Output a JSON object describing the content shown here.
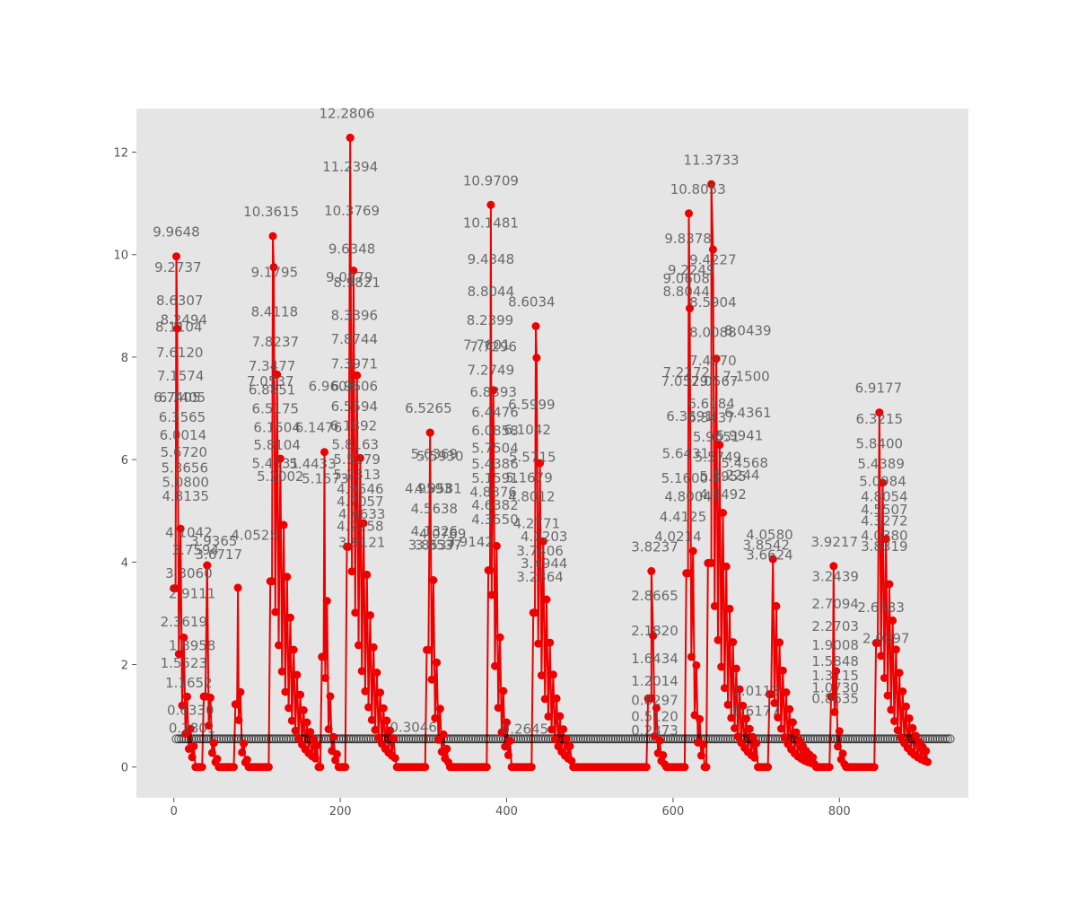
{
  "chart_data": {
    "type": "line",
    "title": "",
    "xlabel": "",
    "ylabel": "",
    "xlim": [
      -45,
      955
    ],
    "ylim": [
      -0.6,
      12.85
    ],
    "x_ticks": [
      0,
      200,
      400,
      600,
      800
    ],
    "y_ticks": [
      0,
      2,
      4,
      6,
      8,
      10,
      12
    ],
    "grid": false,
    "background": "#e5e5e5",
    "colors": {
      "line": "#ee0000",
      "marker": "#ee0000",
      "baseline_marker": "#000000",
      "annotation": "#555555",
      "tick": "#555555"
    },
    "peaks": [
      {
        "x": 3,
        "value": 9.9648,
        "label": "9.9648",
        "end": 24
      },
      {
        "x": 40,
        "value": 3.9365,
        "label": "3.9365",
        "end": 52
      },
      {
        "x": 77,
        "value": 3.5,
        "label": "3.5",
        "end": 88
      },
      {
        "x": 119,
        "value": 10.3615,
        "label": "10.3615",
        "end": 172
      },
      {
        "x": 181,
        "value": 6.1476,
        "label": "6.1476",
        "end": 196
      },
      {
        "x": 212,
        "value": 12.2806,
        "label": "12.2806",
        "end": 266
      },
      {
        "x": 308,
        "value": 6.5265,
        "label": "6.5265",
        "end": 330
      },
      {
        "x": 381,
        "value": 10.9709,
        "label": "10.9709",
        "end": 405
      },
      {
        "x": 435,
        "value": 8.6034,
        "label": "8.6034",
        "end": 478
      },
      {
        "x": 574,
        "value": 3.8237,
        "label": "3.8237",
        "end": 590
      },
      {
        "x": 619,
        "value": 10.8053,
        "label": "10.8053",
        "end": 636
      },
      {
        "x": 646,
        "value": 11.3733,
        "label": "11.3733",
        "end": 700
      },
      {
        "x": 720,
        "value": 4.058,
        "label": "4.0580",
        "end": 770
      },
      {
        "x": 793,
        "value": 3.9217,
        "label": "3.9217",
        "end": 806
      },
      {
        "x": 848,
        "value": 6.9177,
        "label": "6.9177",
        "end": 906
      }
    ],
    "annotations": [
      {
        "x": 3,
        "y": 9.9648,
        "text": "9.9648"
      },
      {
        "x": 5,
        "y": 9.2737,
        "text": "9.2737"
      },
      {
        "x": 7,
        "y": 8.6307,
        "text": "8.6307"
      },
      {
        "x": 6,
        "y": 8.1104,
        "text": "8.1104"
      },
      {
        "x": 12,
        "y": 8.2494,
        "text": "8.2494"
      },
      {
        "x": 7,
        "y": 7.612,
        "text": "7.6120"
      },
      {
        "x": 8,
        "y": 7.1574,
        "text": "7.1574"
      },
      {
        "x": 4,
        "y": 6.7405,
        "text": "6.7405"
      },
      {
        "x": 10,
        "y": 6.7405,
        "text": "6.7405"
      },
      {
        "x": 10,
        "y": 6.3565,
        "text": "6.3565"
      },
      {
        "x": 11,
        "y": 6.0014,
        "text": "6.0014"
      },
      {
        "x": 12,
        "y": 5.672,
        "text": "5.6720"
      },
      {
        "x": 13,
        "y": 5.3656,
        "text": "5.3656"
      },
      {
        "x": 14,
        "y": 5.08,
        "text": "5.0800"
      },
      {
        "x": 14,
        "y": 4.8135,
        "text": "4.8135"
      },
      {
        "x": 18,
        "y": 4.1042,
        "text": "4.1042"
      },
      {
        "x": 26,
        "y": 3.7594,
        "text": "3.7594"
      },
      {
        "x": 54,
        "y": 3.6717,
        "text": "3.6717"
      },
      {
        "x": 48,
        "y": 3.9365,
        "text": "3.9365"
      },
      {
        "x": 18,
        "y": 3.306,
        "text": "3.3060"
      },
      {
        "x": 22,
        "y": 2.9111,
        "text": "2.9111"
      },
      {
        "x": 12,
        "y": 2.3619,
        "text": "2.3619"
      },
      {
        "x": 22,
        "y": 1.8958,
        "text": "1.8958"
      },
      {
        "x": 12,
        "y": 1.5523,
        "text": "1.5523"
      },
      {
        "x": 18,
        "y": 1.1652,
        "text": "1.1652"
      },
      {
        "x": 20,
        "y": 0.633,
        "text": "0.6330"
      },
      {
        "x": 22,
        "y": 0.2801,
        "text": "0.2801"
      },
      {
        "x": 97,
        "y": 4.0525,
        "text": "4.0525"
      },
      {
        "x": 117,
        "y": 10.3615,
        "text": "10.3615"
      },
      {
        "x": 121,
        "y": 9.1795,
        "text": "9.1795"
      },
      {
        "x": 121,
        "y": 8.4118,
        "text": "8.4118"
      },
      {
        "x": 122,
        "y": 7.8237,
        "text": "7.8237"
      },
      {
        "x": 118,
        "y": 7.3477,
        "text": "7.3477"
      },
      {
        "x": 116,
        "y": 7.0537,
        "text": "7.0537"
      },
      {
        "x": 118,
        "y": 6.8851,
        "text": "6.8851"
      },
      {
        "x": 122,
        "y": 6.5175,
        "text": "6.5175"
      },
      {
        "x": 124,
        "y": 6.1504,
        "text": "6.1504"
      },
      {
        "x": 124,
        "y": 5.8104,
        "text": "5.8104"
      },
      {
        "x": 122,
        "y": 5.4531,
        "text": "5.4531"
      },
      {
        "x": 128,
        "y": 5.2002,
        "text": "5.2002"
      },
      {
        "x": 167,
        "y": 5.4433,
        "text": "5.4433"
      },
      {
        "x": 174,
        "y": 6.1476,
        "text": "6.1476"
      },
      {
        "x": 182,
        "y": 5.1573,
        "text": "5.1573"
      },
      {
        "x": 190,
        "y": 6.9606,
        "text": "6.9606"
      },
      {
        "x": 208,
        "y": 12.2806,
        "text": "12.2806"
      },
      {
        "x": 212,
        "y": 11.2394,
        "text": "11.2394"
      },
      {
        "x": 214,
        "y": 10.3769,
        "text": "10.3769"
      },
      {
        "x": 214,
        "y": 9.6348,
        "text": "9.6348"
      },
      {
        "x": 211,
        "y": 9.0879,
        "text": "9.0879"
      },
      {
        "x": 220,
        "y": 8.9821,
        "text": "8.9821"
      },
      {
        "x": 217,
        "y": 8.3396,
        "text": "8.3396"
      },
      {
        "x": 217,
        "y": 7.8744,
        "text": "7.8744"
      },
      {
        "x": 217,
        "y": 7.3971,
        "text": "7.3971"
      },
      {
        "x": 217,
        "y": 6.9606,
        "text": "6.9606"
      },
      {
        "x": 217,
        "y": 6.5594,
        "text": "6.5594"
      },
      {
        "x": 216,
        "y": 6.1892,
        "text": "6.1892"
      },
      {
        "x": 218,
        "y": 5.8163,
        "text": "5.8163"
      },
      {
        "x": 220,
        "y": 5.5279,
        "text": "5.5279"
      },
      {
        "x": 220,
        "y": 5.2313,
        "text": "5.2313"
      },
      {
        "x": 224,
        "y": 4.9546,
        "text": "4.9546"
      },
      {
        "x": 224,
        "y": 4.7057,
        "text": "4.7057"
      },
      {
        "x": 226,
        "y": 4.4633,
        "text": "4.4633"
      },
      {
        "x": 224,
        "y": 4.2258,
        "text": "4.2258"
      },
      {
        "x": 226,
        "y": 3.9121,
        "text": "3.9121"
      },
      {
        "x": 288,
        "y": 0.3046,
        "text": "0.3046"
      },
      {
        "x": 306,
        "y": 6.5265,
        "text": "6.5265"
      },
      {
        "x": 313,
        "y": 5.6369,
        "text": "5.6369"
      },
      {
        "x": 320,
        "y": 5.593,
        "text": "5.5930"
      },
      {
        "x": 306,
        "y": 4.9593,
        "text": "4.9593"
      },
      {
        "x": 318,
        "y": 4.9581,
        "text": "4.9581"
      },
      {
        "x": 313,
        "y": 4.5638,
        "text": "4.5638"
      },
      {
        "x": 313,
        "y": 4.1326,
        "text": "4.1326"
      },
      {
        "x": 310,
        "y": 3.8537,
        "text": "3.8537"
      },
      {
        "x": 318,
        "y": 3.8537,
        "text": "3.8537"
      },
      {
        "x": 323,
        "y": 4.0769,
        "text": "4.0769"
      },
      {
        "x": 356,
        "y": 3.9142,
        "text": "3.9142"
      },
      {
        "x": 381,
        "y": 10.9709,
        "text": "10.9709"
      },
      {
        "x": 381,
        "y": 10.1481,
        "text": "10.1481"
      },
      {
        "x": 381,
        "y": 9.4348,
        "text": "9.4348"
      },
      {
        "x": 381,
        "y": 8.8044,
        "text": "8.8044"
      },
      {
        "x": 380,
        "y": 8.2399,
        "text": "8.2399"
      },
      {
        "x": 376,
        "y": 7.7601,
        "text": "7.7601"
      },
      {
        "x": 384,
        "y": 7.7296,
        "text": "7.7296"
      },
      {
        "x": 381,
        "y": 7.2749,
        "text": "7.2749"
      },
      {
        "x": 384,
        "y": 6.8393,
        "text": "6.8393"
      },
      {
        "x": 386,
        "y": 6.4476,
        "text": "6.4476"
      },
      {
        "x": 386,
        "y": 6.0858,
        "text": "6.0858"
      },
      {
        "x": 386,
        "y": 5.7504,
        "text": "5.7504"
      },
      {
        "x": 386,
        "y": 5.4386,
        "text": "5.4386"
      },
      {
        "x": 386,
        "y": 5.1591,
        "text": "5.1591"
      },
      {
        "x": 384,
        "y": 4.8876,
        "text": "4.8876"
      },
      {
        "x": 386,
        "y": 4.6382,
        "text": "4.6382"
      },
      {
        "x": 386,
        "y": 4.355,
        "text": "4.3550"
      },
      {
        "x": 430,
        "y": 8.6034,
        "text": "8.6034"
      },
      {
        "x": 430,
        "y": 6.5999,
        "text": "6.5999"
      },
      {
        "x": 425,
        "y": 6.1042,
        "text": "6.1042"
      },
      {
        "x": 431,
        "y": 5.5715,
        "text": "5.5715"
      },
      {
        "x": 427,
        "y": 5.1679,
        "text": "5.1679"
      },
      {
        "x": 430,
        "y": 4.8012,
        "text": "4.8012"
      },
      {
        "x": 436,
        "y": 4.2771,
        "text": "4.2771"
      },
      {
        "x": 445,
        "y": 4.0203,
        "text": "4.0203"
      },
      {
        "x": 440,
        "y": 3.7406,
        "text": "3.7406"
      },
      {
        "x": 445,
        "y": 3.4944,
        "text": "3.4944"
      },
      {
        "x": 440,
        "y": 3.2364,
        "text": "3.2364"
      },
      {
        "x": 422,
        "y": 0.2645,
        "text": "0.2645"
      },
      {
        "x": 578,
        "y": 3.8237,
        "text": "3.8237"
      },
      {
        "x": 578,
        "y": 2.8665,
        "text": "2.8665"
      },
      {
        "x": 578,
        "y": 2.182,
        "text": "2.1820"
      },
      {
        "x": 578,
        "y": 1.6434,
        "text": "1.6434"
      },
      {
        "x": 578,
        "y": 1.2014,
        "text": "1.2014"
      },
      {
        "x": 578,
        "y": 0.8297,
        "text": "0.8297"
      },
      {
        "x": 578,
        "y": 0.512,
        "text": "0.5120"
      },
      {
        "x": 578,
        "y": 0.2373,
        "text": "0.2373"
      },
      {
        "x": 630,
        "y": 10.8053,
        "text": "10.8053"
      },
      {
        "x": 618,
        "y": 9.8378,
        "text": "9.8378"
      },
      {
        "x": 622,
        "y": 9.2249,
        "text": "9.2249"
      },
      {
        "x": 616,
        "y": 9.0608,
        "text": "9.0608"
      },
      {
        "x": 616,
        "y": 8.8044,
        "text": "8.8044"
      },
      {
        "x": 646,
        "y": 11.3733,
        "text": "11.3733"
      },
      {
        "x": 648,
        "y": 9.4227,
        "text": "9.4227"
      },
      {
        "x": 648,
        "y": 8.5904,
        "text": "8.5904"
      },
      {
        "x": 648,
        "y": 8.0088,
        "text": "8.0088"
      },
      {
        "x": 648,
        "y": 7.457,
        "text": "7.4570"
      },
      {
        "x": 616,
        "y": 7.2272,
        "text": "7.2272"
      },
      {
        "x": 614,
        "y": 7.0529,
        "text": "7.0529"
      },
      {
        "x": 650,
        "y": 7.0567,
        "text": "7.0567"
      },
      {
        "x": 690,
        "y": 8.0439,
        "text": "8.0439"
      },
      {
        "x": 688,
        "y": 7.15,
        "text": "7.1500"
      },
      {
        "x": 690,
        "y": 6.4361,
        "text": "6.4361"
      },
      {
        "x": 680,
        "y": 5.9941,
        "text": "5.9941"
      },
      {
        "x": 686,
        "y": 5.4568,
        "text": "5.4568"
      },
      {
        "x": 676,
        "y": 5.2244,
        "text": "5.2244"
      },
      {
        "x": 646,
        "y": 6.6184,
        "text": "6.6184"
      },
      {
        "x": 646,
        "y": 6.3437,
        "text": "6.3437"
      },
      {
        "x": 620,
        "y": 6.3691,
        "text": "6.3691"
      },
      {
        "x": 615,
        "y": 5.6431,
        "text": "5.6431"
      },
      {
        "x": 652,
        "y": 5.9651,
        "text": "5.9651"
      },
      {
        "x": 654,
        "y": 5.5749,
        "text": "5.5749"
      },
      {
        "x": 614,
        "y": 5.16,
        "text": "5.1600"
      },
      {
        "x": 660,
        "y": 5.1955,
        "text": "5.1955"
      },
      {
        "x": 618,
        "y": 4.8004,
        "text": "4.8004"
      },
      {
        "x": 660,
        "y": 4.8492,
        "text": "4.8492"
      },
      {
        "x": 612,
        "y": 4.4125,
        "text": "4.4125"
      },
      {
        "x": 606,
        "y": 4.0214,
        "text": "4.0214"
      },
      {
        "x": 716,
        "y": 4.058,
        "text": "4.0580"
      },
      {
        "x": 712,
        "y": 3.8542,
        "text": "3.8542"
      },
      {
        "x": 716,
        "y": 3.6624,
        "text": "3.6624"
      },
      {
        "x": 794,
        "y": 3.9217,
        "text": "3.9217"
      },
      {
        "x": 795,
        "y": 3.2439,
        "text": "3.2439"
      },
      {
        "x": 795,
        "y": 2.7094,
        "text": "2.7094"
      },
      {
        "x": 795,
        "y": 2.2703,
        "text": "2.2703"
      },
      {
        "x": 795,
        "y": 1.9008,
        "text": "1.9008"
      },
      {
        "x": 795,
        "y": 1.5848,
        "text": "1.5848"
      },
      {
        "x": 795,
        "y": 1.3115,
        "text": "1.3115"
      },
      {
        "x": 795,
        "y": 1.073,
        "text": "1.0730"
      },
      {
        "x": 795,
        "y": 0.8635,
        "text": "0.8635"
      },
      {
        "x": 700,
        "y": 1.0113,
        "text": "1.0113"
      },
      {
        "x": 700,
        "y": 0.6177,
        "text": "0.6177"
      },
      {
        "x": 847,
        "y": 6.9177,
        "text": "6.9177"
      },
      {
        "x": 848,
        "y": 6.3215,
        "text": "6.3215"
      },
      {
        "x": 848,
        "y": 5.84,
        "text": "5.8400"
      },
      {
        "x": 850,
        "y": 5.4389,
        "text": "5.4389"
      },
      {
        "x": 852,
        "y": 5.0984,
        "text": "5.0984"
      },
      {
        "x": 854,
        "y": 4.8054,
        "text": "4.8054"
      },
      {
        "x": 854,
        "y": 4.5507,
        "text": "4.5507"
      },
      {
        "x": 854,
        "y": 4.3272,
        "text": "4.3272"
      },
      {
        "x": 854,
        "y": 4.038,
        "text": "4.0380"
      },
      {
        "x": 854,
        "y": 3.8319,
        "text": "3.8319"
      },
      {
        "x": 850,
        "y": 2.6383,
        "text": "2.6383"
      },
      {
        "x": 856,
        "y": 2.0397,
        "text": "2.0397"
      }
    ]
  }
}
